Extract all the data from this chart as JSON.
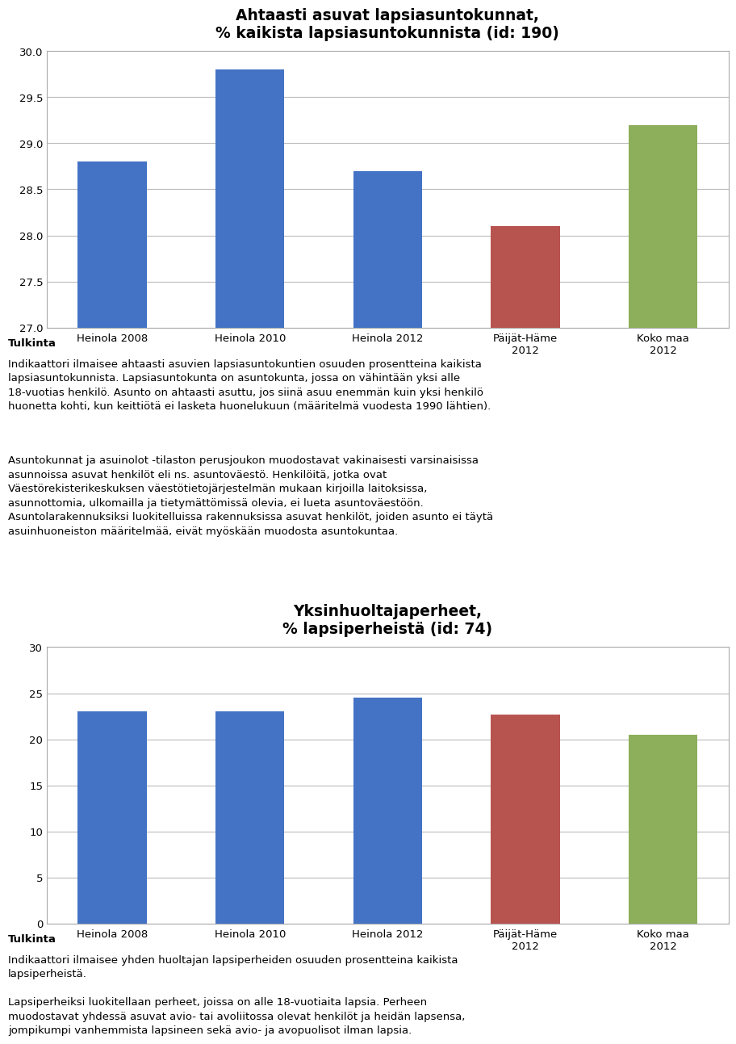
{
  "chart1": {
    "title": "Ahtaasti asuvat lapsiasuntokunnat,\n% kaikista lapsiasuntokunnista (id: 190)",
    "categories": [
      "Heinola 2008",
      "Heinola 2010",
      "Heinola 2012",
      "Päijät-Häme\n2012",
      "Koko maa\n2012"
    ],
    "values": [
      28.8,
      29.8,
      28.7,
      28.1,
      29.2
    ],
    "colors": [
      "#4472C4",
      "#4472C4",
      "#4472C4",
      "#B85450",
      "#8DAE5A"
    ],
    "ylim": [
      27,
      30
    ],
    "yticks": [
      27,
      27.5,
      28,
      28.5,
      29,
      29.5,
      30
    ]
  },
  "chart2": {
    "title": "Yksinhuoltajaperheet,\n% lapsiperheistä (id: 74)",
    "categories": [
      "Heinola 2008",
      "Heinola 2010",
      "Heinola 2012",
      "Päijät-Häme\n2012",
      "Koko maa\n2012"
    ],
    "values": [
      23.0,
      23.0,
      24.5,
      22.7,
      20.5
    ],
    "colors": [
      "#4472C4",
      "#4472C4",
      "#4472C4",
      "#B85450",
      "#8DAE5A"
    ],
    "ylim": [
      0,
      30
    ],
    "yticks": [
      0,
      5,
      10,
      15,
      20,
      25,
      30
    ]
  },
  "text1_title": "Tulkinta",
  "text1_para1": "Indikaattori ilmaisee ahtaasti asuvien lapsiasuntokuntien osuuden prosentteina kaikista lapsiasuntokunnista. Lapsiasuntokunta on asuntokunta, jossa on vähintään yksi alle 18-vuotias henkilö. Asunto on ahtaasti asuttu, jos siinä asuu enemmän kuin yksi henkilö huonetta kohti, kun keittiötä ei lasketa huonelukuun (määritelmä vuodesta 1990 lähtien).",
  "text1_para2": "Asuntokunnat ja asuinolot -tilaston perusjoukon muodostavat vakinaisesti varsinaisissa asunnoissa asuvat henkilöt eli ns. asuntoväestö. Henkilöitä, jotka ovat Väestörekisterikeskuksen väestötietojärjestelmän mukaan kirjoilla laitoksissa, asunnottomia, ulkomailla ja tietymättömissä olevia, ei lueta asuntoväestöön. Asuntolarakennuksiksi luokitelluissa rakennuksissa asuvat henkilöt, joiden asunto ei täytä asuinhuoneiston määritelmää, eivät myöskään muodosta asuntokuntaa.",
  "text2_title": "Tulkinta",
  "text2_para1": "Indikaattori ilmaisee yhden huoltajan lapsiperheiden osuuden prosentteina kaikista lapsiperheistä.",
  "text2_para2": "Lapsiperheiksi luokitellaan perheet, joissa on alle 18-vuotiaita lapsia. Perheen muodostavat yhdessä asuvat avio- tai avoliitossa olevat henkilöt ja heidän lapsensa, jompikumpi vanhemmista lapsineen sekä avio- ja avopuolisot ilman lapsia.",
  "background_color": "#FFFFFF",
  "chart_bg": "#FFFFFF",
  "grid_color": "#BBBBBB",
  "box_edge_color": "#AAAAAA",
  "text_fontsize": 9.5,
  "title_fontsize": 13.5
}
